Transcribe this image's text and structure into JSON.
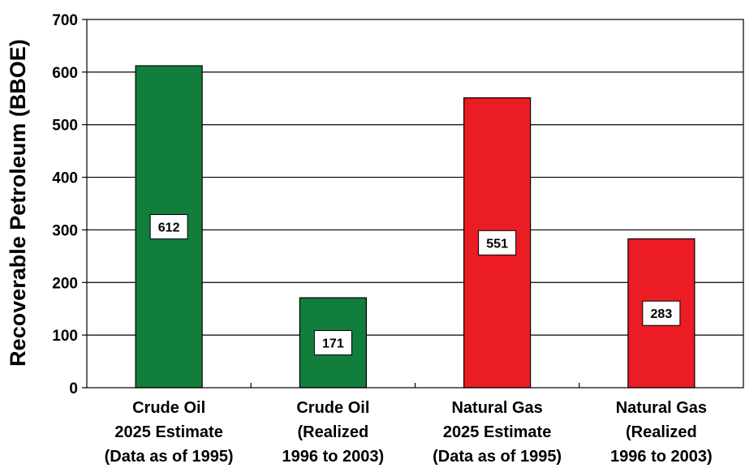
{
  "chart_data": {
    "type": "bar",
    "ylabel": "Recoverable Petroleum (BBOE)",
    "xlabel": "",
    "ylim": [
      0,
      700
    ],
    "yticks": [
      0,
      100,
      200,
      300,
      400,
      500,
      600,
      700
    ],
    "grid": true,
    "categories": [
      [
        "Crude Oil",
        "2025 Estimate",
        "(Data as of 1995)"
      ],
      [
        "Crude Oil",
        "(Realized",
        "1996 to 2003)"
      ],
      [
        "Natural Gas",
        "2025 Estimate",
        "(Data as of 1995)"
      ],
      [
        "Natural Gas",
        "(Realized",
        "1996 to 2003)"
      ]
    ],
    "values": [
      612,
      171,
      551,
      283
    ],
    "data_labels": [
      "612",
      "171",
      "551",
      "283"
    ],
    "colors": [
      "#127e3c",
      "#127e3c",
      "#ec1c24",
      "#ec1c24"
    ]
  }
}
